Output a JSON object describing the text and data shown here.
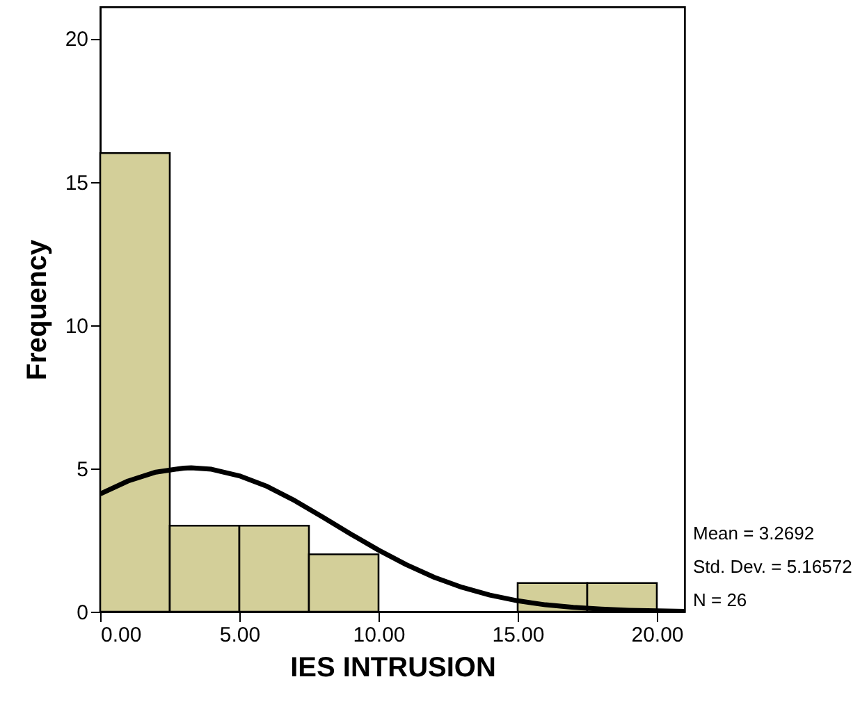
{
  "chart_data": {
    "type": "histogram",
    "xlabel": "IES INTRUSION",
    "ylabel": "Frequency",
    "bins": [
      0,
      2.5,
      5,
      7.5,
      10,
      12.5,
      15,
      17.5,
      20
    ],
    "values": [
      16,
      3,
      3,
      2,
      0,
      0,
      1,
      1
    ],
    "color": "#d3cf99",
    "series": [
      {
        "type": "line",
        "color": "#000000",
        "x": [
          0,
          1,
          2,
          3,
          3.27,
          4,
          5,
          6,
          7,
          8,
          9,
          10,
          11,
          12,
          13,
          14,
          15,
          16,
          17,
          18,
          19,
          20,
          21
        ],
        "values": [
          4.11,
          4.56,
          4.87,
          5.01,
          5.02,
          4.97,
          4.74,
          4.37,
          3.87,
          3.3,
          2.71,
          2.15,
          1.64,
          1.2,
          0.85,
          0.58,
          0.38,
          0.24,
          0.15,
          0.09,
          0.05,
          0.03,
          0.01
        ]
      }
    ],
    "xlim": [
      0,
      21
    ],
    "ylim": [
      0,
      21.1
    ],
    "xticks": [
      {
        "value": 0,
        "label": "0.00"
      },
      {
        "value": 5,
        "label": "5.00"
      },
      {
        "value": 10,
        "label": "10.00"
      },
      {
        "value": 15,
        "label": "15.00"
      },
      {
        "value": 20,
        "label": "20.00"
      }
    ],
    "yticks": [
      0,
      5,
      10,
      15,
      20
    ],
    "grid": false,
    "annotations": [
      "Mean = 3.2692",
      "Std. Dev. = 5.16572",
      "N = 26"
    ]
  }
}
